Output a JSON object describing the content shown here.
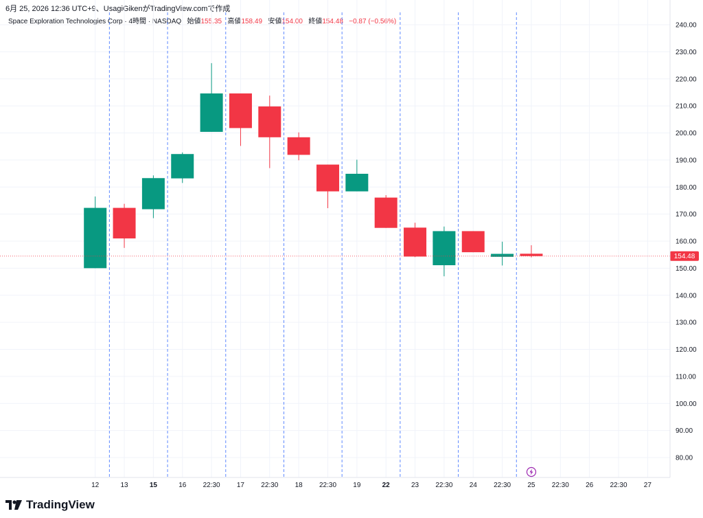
{
  "header": {
    "timestamp_line": "6月 25, 2026 12:36 UTC+9、UsagiGikenがTradingView.comで作成"
  },
  "legend": {
    "symbol": "Space Exploration Technologies Corp · 4時間 · NASDAQ",
    "open_label": "始値",
    "open_value": "155.35",
    "high_label": "高値",
    "high_value": "158.49",
    "low_label": "安値",
    "low_value": "154.00",
    "close_label": "終値",
    "close_value": "154.48",
    "change_value": "−0.87 (−0.56%)"
  },
  "footer": {
    "brand": "TradingView"
  },
  "colors": {
    "up": "#089981",
    "down": "#f23645",
    "session": "#2962ff",
    "price_line": "#f23645"
  },
  "chart_data": {
    "type": "candlestick",
    "ylim": [
      72,
      245
    ],
    "y_ticks": [
      80,
      90,
      100,
      110,
      120,
      130,
      140,
      150,
      160,
      170,
      180,
      190,
      200,
      210,
      220,
      230,
      240
    ],
    "last_price": 154.48,
    "last_price_label": "154.48",
    "x_labels": [
      {
        "text": "12",
        "bold": false
      },
      {
        "text": "13",
        "bold": false
      },
      {
        "text": "15",
        "bold": true
      },
      {
        "text": "16",
        "bold": false
      },
      {
        "text": "22:30",
        "bold": false
      },
      {
        "text": "17",
        "bold": false
      },
      {
        "text": "22:30",
        "bold": false
      },
      {
        "text": "18",
        "bold": false
      },
      {
        "text": "22:30",
        "bold": false
      },
      {
        "text": "19",
        "bold": false
      },
      {
        "text": "22",
        "bold": true
      },
      {
        "text": "23",
        "bold": false
      },
      {
        "text": "22:30",
        "bold": false
      },
      {
        "text": "24",
        "bold": false
      },
      {
        "text": "22:30",
        "bold": false
      },
      {
        "text": "25",
        "bold": false
      },
      {
        "text": "22:30",
        "bold": false
      },
      {
        "text": "26",
        "bold": false
      },
      {
        "text": "22:30",
        "bold": false
      },
      {
        "text": "27",
        "bold": false
      }
    ],
    "candles": [
      {
        "open": 150.0,
        "high": 176.5,
        "low": 150.0,
        "close": 172.3
      },
      {
        "open": 172.3,
        "high": 173.8,
        "low": 157.5,
        "close": 161.0
      },
      {
        "open": 171.8,
        "high": 184.3,
        "low": 168.5,
        "close": 183.3
      },
      {
        "open": 183.2,
        "high": 192.8,
        "low": 181.5,
        "close": 192.2
      },
      {
        "open": 200.4,
        "high": 225.8,
        "low": 200.4,
        "close": 214.6
      },
      {
        "open": 214.6,
        "high": 214.6,
        "low": 195.2,
        "close": 201.8
      },
      {
        "open": 209.8,
        "high": 213.8,
        "low": 187.0,
        "close": 198.4
      },
      {
        "open": 198.4,
        "high": 200.2,
        "low": 189.9,
        "close": 191.9
      },
      {
        "open": 188.3,
        "high": 188.3,
        "low": 172.2,
        "close": 178.4
      },
      {
        "open": 178.4,
        "high": 190.1,
        "low": 178.4,
        "close": 184.9
      },
      {
        "open": 176.1,
        "high": 177.0,
        "low": 164.9,
        "close": 164.9
      },
      {
        "open": 165.0,
        "high": 166.8,
        "low": 154.1,
        "close": 154.3
      },
      {
        "open": 151.1,
        "high": 165.4,
        "low": 147.0,
        "close": 163.7
      },
      {
        "open": 163.7,
        "high": 163.7,
        "low": 155.9,
        "close": 155.9
      },
      {
        "open": 154.2,
        "high": 159.8,
        "low": 151.0,
        "close": 155.3
      },
      {
        "open": 155.35,
        "high": 158.49,
        "low": 154.0,
        "close": 154.48
      }
    ],
    "session_breaks": [
      0.5,
      2.5,
      4.5,
      6.5,
      8.5,
      10.5,
      12.5,
      14.5
    ]
  }
}
